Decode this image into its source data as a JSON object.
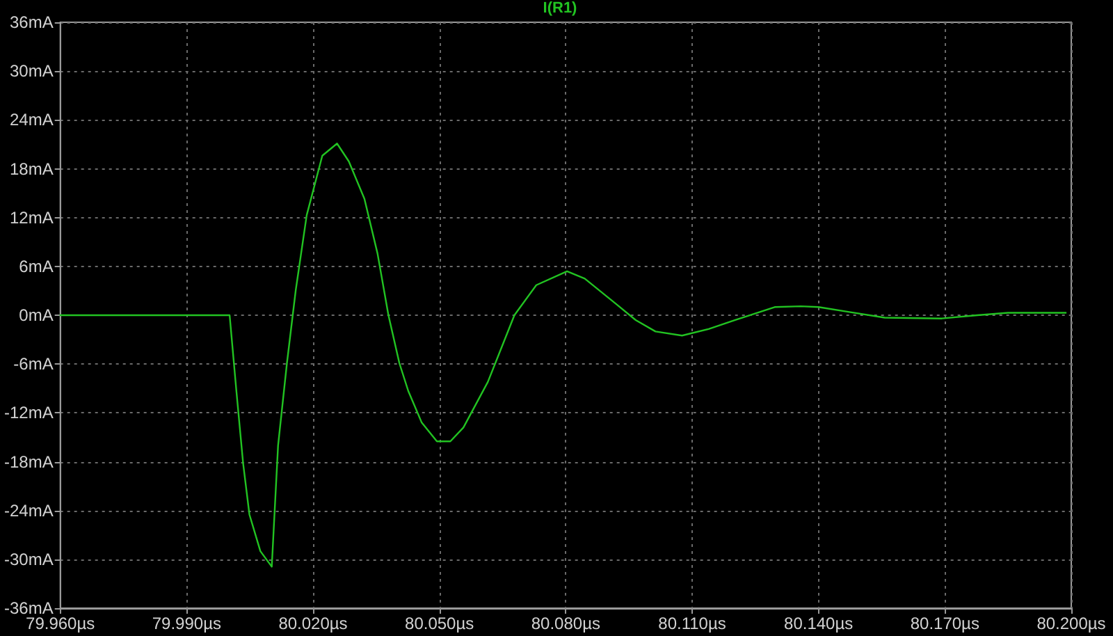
{
  "chart_data": {
    "type": "line",
    "x": [
      79.96,
      80.0002,
      80.0018,
      80.0034,
      80.0049,
      80.0075,
      80.0102,
      80.0117,
      80.0138,
      80.0159,
      80.0185,
      80.0222,
      80.0257,
      80.0285,
      80.0322,
      80.0353,
      80.0379,
      80.0405,
      80.0426,
      80.0458,
      80.0494,
      80.0526,
      80.0557,
      80.0615,
      80.0678,
      80.073,
      80.0803,
      80.0845,
      80.0919,
      80.0966,
      80.1013,
      80.1076,
      80.1139,
      80.1201,
      80.1296,
      80.1358,
      80.14,
      80.1473,
      80.1557,
      80.1693,
      80.1777,
      80.185,
      80.1987
    ],
    "series": [
      {
        "name": "I(R1)",
        "color": "#22c322",
        "values": [
          0,
          0,
          -9.3,
          -18.2,
          -24.5,
          -29.0,
          -30.9,
          -16.0,
          -5.9,
          3.1,
          12.3,
          19.6,
          21.1,
          18.9,
          14.3,
          7.6,
          0,
          -5.9,
          -9.3,
          -13.2,
          -15.5,
          -15.5,
          -13.8,
          -8.2,
          0,
          3.7,
          5.4,
          4.5,
          1.4,
          -0.6,
          -2.0,
          -2.5,
          -1.7,
          -0.6,
          1.0,
          1.1,
          1.0,
          0.4,
          -0.3,
          -0.4,
          0,
          0.3,
          0.3
        ]
      }
    ],
    "xlim": [
      79.96,
      80.2
    ],
    "xticks": [
      {
        "value": 79.96,
        "label": "79.960µs"
      },
      {
        "value": 79.99,
        "label": "79.990µs"
      },
      {
        "value": 80.02,
        "label": "80.020µs"
      },
      {
        "value": 80.05,
        "label": "80.050µs"
      },
      {
        "value": 80.08,
        "label": "80.080µs"
      },
      {
        "value": 80.11,
        "label": "80.110µs"
      },
      {
        "value": 80.14,
        "label": "80.140µs"
      },
      {
        "value": 80.17,
        "label": "80.170µs"
      },
      {
        "value": 80.2,
        "label": "80.200µs"
      }
    ],
    "ylim": [
      -36,
      36
    ],
    "yticks": [
      {
        "value": -36,
        "label": "-36mA"
      },
      {
        "value": -30,
        "label": "-30mA"
      },
      {
        "value": -24,
        "label": "-24mA"
      },
      {
        "value": -18,
        "label": "-18mA"
      },
      {
        "value": -12,
        "label": "-12mA"
      },
      {
        "value": -6,
        "label": "-6mA"
      },
      {
        "value": 0,
        "label": "0mA"
      },
      {
        "value": 6,
        "label": "6mA"
      },
      {
        "value": 12,
        "label": "12mA"
      },
      {
        "value": 18,
        "label": "18mA"
      },
      {
        "value": 24,
        "label": "24mA"
      },
      {
        "value": 30,
        "label": "30mA"
      },
      {
        "value": 36,
        "label": "36mA"
      }
    ],
    "grid": true,
    "legend": "top",
    "marker": "none",
    "line_style": "solid"
  }
}
